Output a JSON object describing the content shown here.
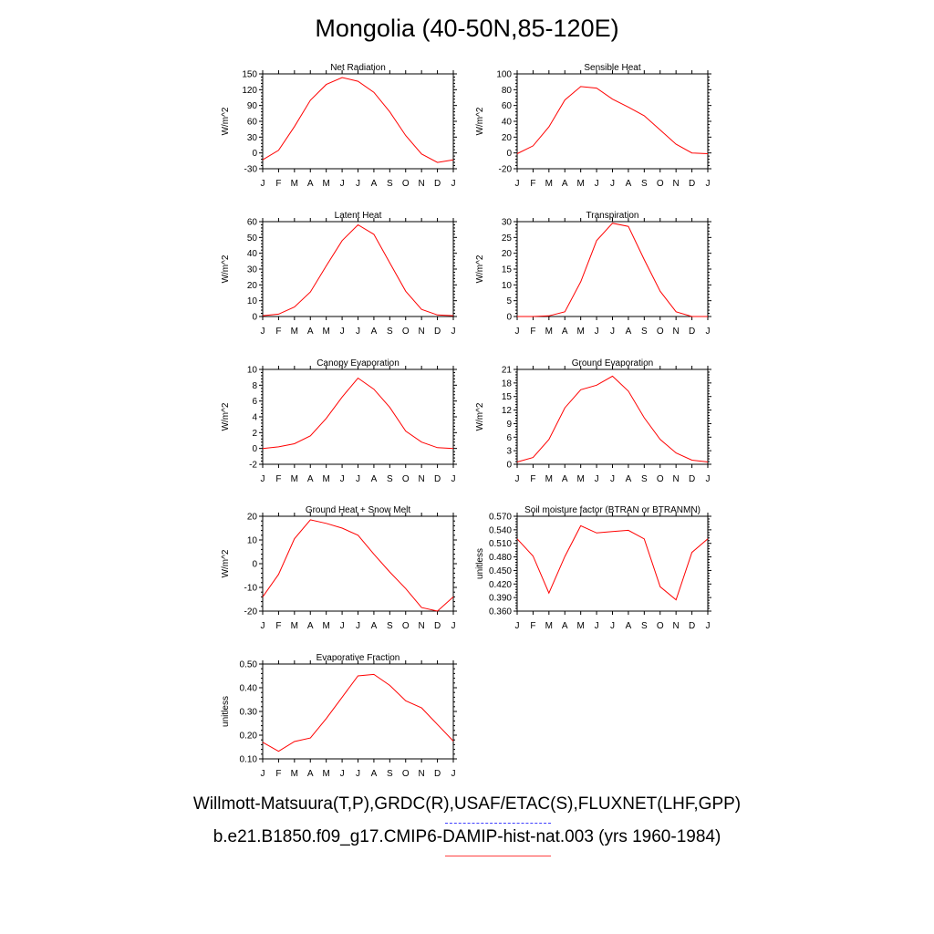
{
  "title": "Mongolia (40-50N,85-120E)",
  "footer": {
    "obs_line": "Willmott-Matsuura(T,P),GRDC(R),USAF/ETAC(S),FLUXNET(LHF,GPP)",
    "model_line": "b.e21.B1850.f09_g17.CMIP6-DAMIP-hist-nat.003 (yrs 1960-1984)",
    "obs_color": "#4040ff",
    "model_color": "#ff4040"
  },
  "colors": {
    "series": "#ff0000",
    "axis": "#000000"
  },
  "chart_data": [
    {
      "type": "line",
      "title": "Net Radiation",
      "ylabel": "W/m^2",
      "x": [
        "J",
        "F",
        "M",
        "A",
        "M",
        "J",
        "J",
        "A",
        "S",
        "O",
        "N",
        "D",
        "J"
      ],
      "ylim": [
        -30,
        150
      ],
      "yticks": [
        "-30",
        "0",
        "30",
        "60",
        "90",
        "120",
        "150"
      ],
      "series": [
        {
          "values": [
            -13,
            5,
            50,
            100,
            130,
            143,
            136,
            115,
            78,
            33,
            -2,
            -18,
            -13
          ]
        }
      ]
    },
    {
      "type": "line",
      "title": "Sensible Heat",
      "ylabel": "W/m^2",
      "x": [
        "J",
        "F",
        "M",
        "A",
        "M",
        "J",
        "J",
        "A",
        "S",
        "O",
        "N",
        "D",
        "J"
      ],
      "ylim": [
        -20,
        100
      ],
      "yticks": [
        "-20",
        "0",
        "20",
        "40",
        "60",
        "80",
        "100"
      ],
      "series": [
        {
          "values": [
            -1,
            9,
            33,
            67,
            84,
            82,
            68,
            58,
            47,
            29,
            11,
            0,
            -1
          ]
        }
      ]
    },
    {
      "type": "line",
      "title": "Latent Heat",
      "ylabel": "W/m^2",
      "x": [
        "J",
        "F",
        "M",
        "A",
        "M",
        "J",
        "J",
        "A",
        "S",
        "O",
        "N",
        "D",
        "J"
      ],
      "ylim": [
        0,
        60
      ],
      "yticks": [
        "0",
        "10",
        "20",
        "30",
        "40",
        "50",
        "60"
      ],
      "series": [
        {
          "values": [
            0.5,
            1.5,
            6,
            15.5,
            32,
            48,
            58,
            52,
            34,
            16,
            4.5,
            1,
            0.5
          ]
        }
      ]
    },
    {
      "type": "line",
      "title": "Transpiration",
      "ylabel": "W/m^2",
      "x": [
        "J",
        "F",
        "M",
        "A",
        "M",
        "J",
        "J",
        "A",
        "S",
        "O",
        "N",
        "D",
        "J"
      ],
      "ylim": [
        0,
        30
      ],
      "yticks": [
        "0",
        "5",
        "10",
        "15",
        "20",
        "25",
        "30"
      ],
      "series": [
        {
          "values": [
            0,
            0,
            0.2,
            1.5,
            11,
            24,
            29.5,
            28.5,
            18,
            8,
            1.5,
            0,
            0
          ]
        }
      ]
    },
    {
      "type": "line",
      "title": "Canopy Evaporation",
      "ylabel": "W/m^2",
      "x": [
        "J",
        "F",
        "M",
        "A",
        "M",
        "J",
        "J",
        "A",
        "S",
        "O",
        "N",
        "D",
        "J"
      ],
      "ylim": [
        -2,
        10
      ],
      "yticks": [
        "-2",
        "0",
        "2",
        "4",
        "6",
        "8",
        "10"
      ],
      "series": [
        {
          "values": [
            0,
            0.2,
            0.6,
            1.6,
            3.8,
            6.5,
            8.9,
            7.5,
            5.2,
            2.2,
            0.8,
            0.1,
            0
          ]
        }
      ]
    },
    {
      "type": "line",
      "title": "Ground Evaporation",
      "ylabel": "W/m^2",
      "x": [
        "J",
        "F",
        "M",
        "A",
        "M",
        "J",
        "J",
        "A",
        "S",
        "O",
        "N",
        "D",
        "J"
      ],
      "ylim": [
        0,
        21
      ],
      "yticks": [
        "0",
        "3",
        "6",
        "9",
        "12",
        "15",
        "18",
        "21"
      ],
      "series": [
        {
          "values": [
            0.5,
            1.5,
            5.5,
            12.5,
            16.5,
            17.5,
            19.5,
            16.2,
            10.3,
            5.5,
            2.5,
            0.9,
            0.5
          ]
        }
      ]
    },
    {
      "type": "line",
      "title": "Ground Heat + Snow Melt",
      "ylabel": "W/m^2",
      "x": [
        "J",
        "F",
        "M",
        "A",
        "M",
        "J",
        "J",
        "A",
        "S",
        "O",
        "N",
        "D",
        "J"
      ],
      "ylim": [
        -20,
        20
      ],
      "yticks": [
        "-20",
        "-10",
        "0",
        "10",
        "20"
      ],
      "series": [
        {
          "values": [
            -14,
            -4.5,
            10.5,
            18.5,
            17,
            15,
            12,
            4,
            -3.5,
            -10.5,
            -18.5,
            -20,
            -14
          ]
        }
      ]
    },
    {
      "type": "line",
      "title": "Soil moisture factor (BTRAN or BTRANMN)",
      "ylabel": "unitless",
      "x": [
        "J",
        "F",
        "M",
        "A",
        "M",
        "J",
        "J",
        "A",
        "S",
        "O",
        "N",
        "D",
        "J"
      ],
      "ylim": [
        0.36,
        0.57
      ],
      "yticks": [
        "0.360",
        "0.390",
        "0.420",
        "0.450",
        "0.480",
        "0.510",
        "0.540",
        "0.570"
      ],
      "series": [
        {
          "values": [
            0.52,
            0.482,
            0.4,
            0.481,
            0.549,
            0.533,
            0.536,
            0.539,
            0.52,
            0.414,
            0.385,
            0.49,
            0.52
          ]
        }
      ]
    },
    {
      "type": "line",
      "title": "Evaporative Fraction",
      "ylabel": "unitless",
      "x": [
        "J",
        "F",
        "M",
        "A",
        "M",
        "J",
        "J",
        "A",
        "S",
        "O",
        "N",
        "D",
        "J"
      ],
      "ylim": [
        0.1,
        0.5
      ],
      "yticks": [
        "0.10",
        "0.20",
        "0.30",
        "0.40",
        "0.50"
      ],
      "series": [
        {
          "values": [
            0.17,
            0.132,
            0.173,
            0.188,
            0.27,
            0.36,
            0.45,
            0.456,
            0.41,
            0.345,
            0.315,
            0.245,
            0.175
          ]
        }
      ]
    }
  ]
}
